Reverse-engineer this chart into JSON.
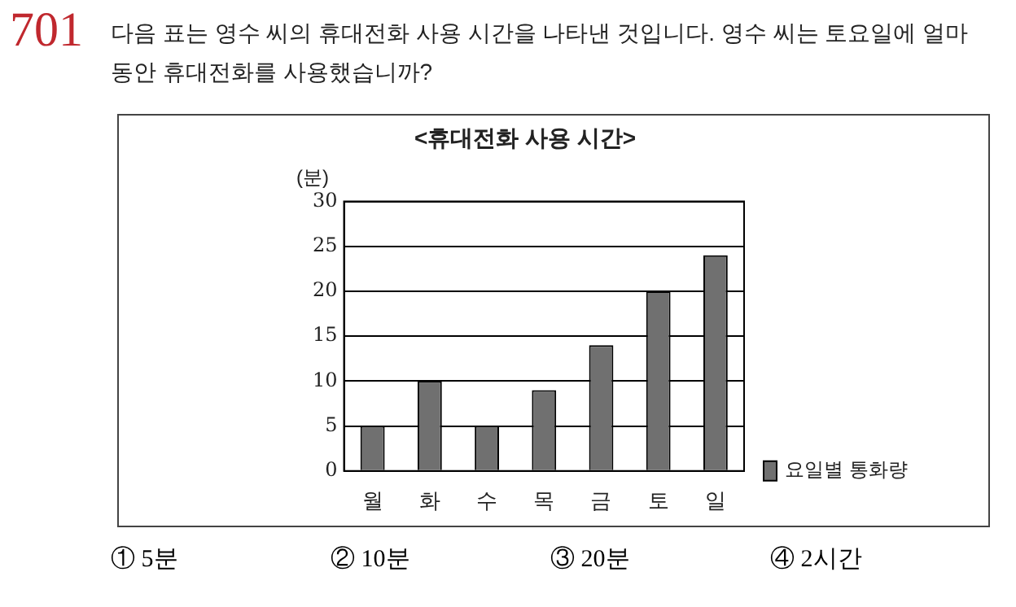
{
  "chart_data": {
    "type": "bar",
    "title": "<휴대전화 사용 시간>",
    "ylabel": "(분)",
    "categories": [
      "월",
      "화",
      "수",
      "목",
      "금",
      "토",
      "일"
    ],
    "series": [
      {
        "name": "요일별 통화량",
        "color": "#707070",
        "values": [
          5,
          10,
          5,
          9,
          14,
          20,
          24
        ]
      }
    ],
    "ylim": [
      0,
      30
    ],
    "yticks": [
      0,
      5,
      10,
      15,
      20,
      25,
      30
    ],
    "grid": "y",
    "legend": "right",
    "annotations": [
      "701",
      "다음 표는 영수 씨의 휴대전화 사용 시간을 나타낸 것입니다. 영수 씨는 토요일에 얼마 동안 휴대전화를 사용했습니까?",
      "① 5분",
      "② 10분",
      "③ 20분",
      "④ 2시간"
    ]
  }
}
